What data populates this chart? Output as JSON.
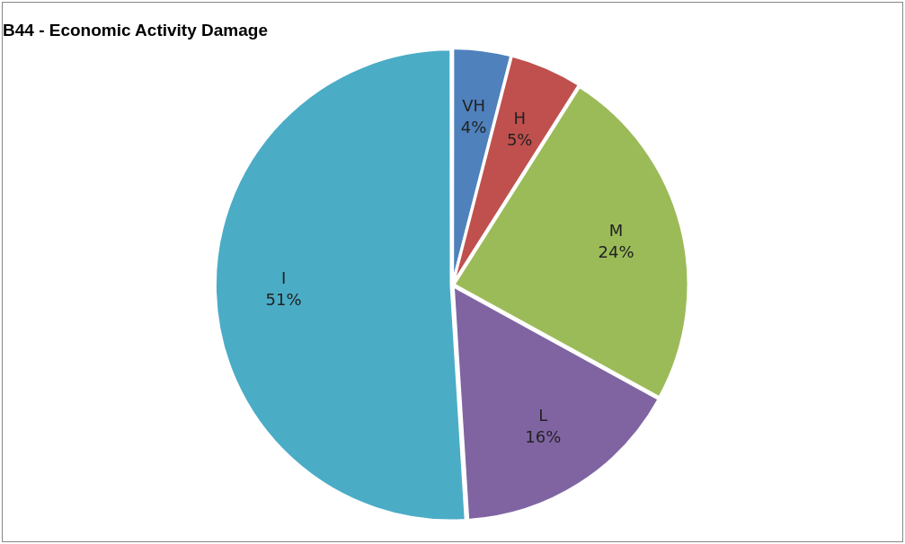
{
  "chart_data": {
    "type": "pie",
    "title": "B44 - Economic Activity Damage",
    "categories": [
      "VH",
      "H",
      "M",
      "L",
      "I"
    ],
    "values": [
      4,
      5,
      24,
      16,
      51
    ],
    "colors": [
      "#4f81bd",
      "#c0504d",
      "#9bbb59",
      "#8064a2",
      "#4bacc6"
    ],
    "value_labels": [
      "4%",
      "5%",
      "24%",
      "16%",
      "51%"
    ],
    "legend": false
  }
}
